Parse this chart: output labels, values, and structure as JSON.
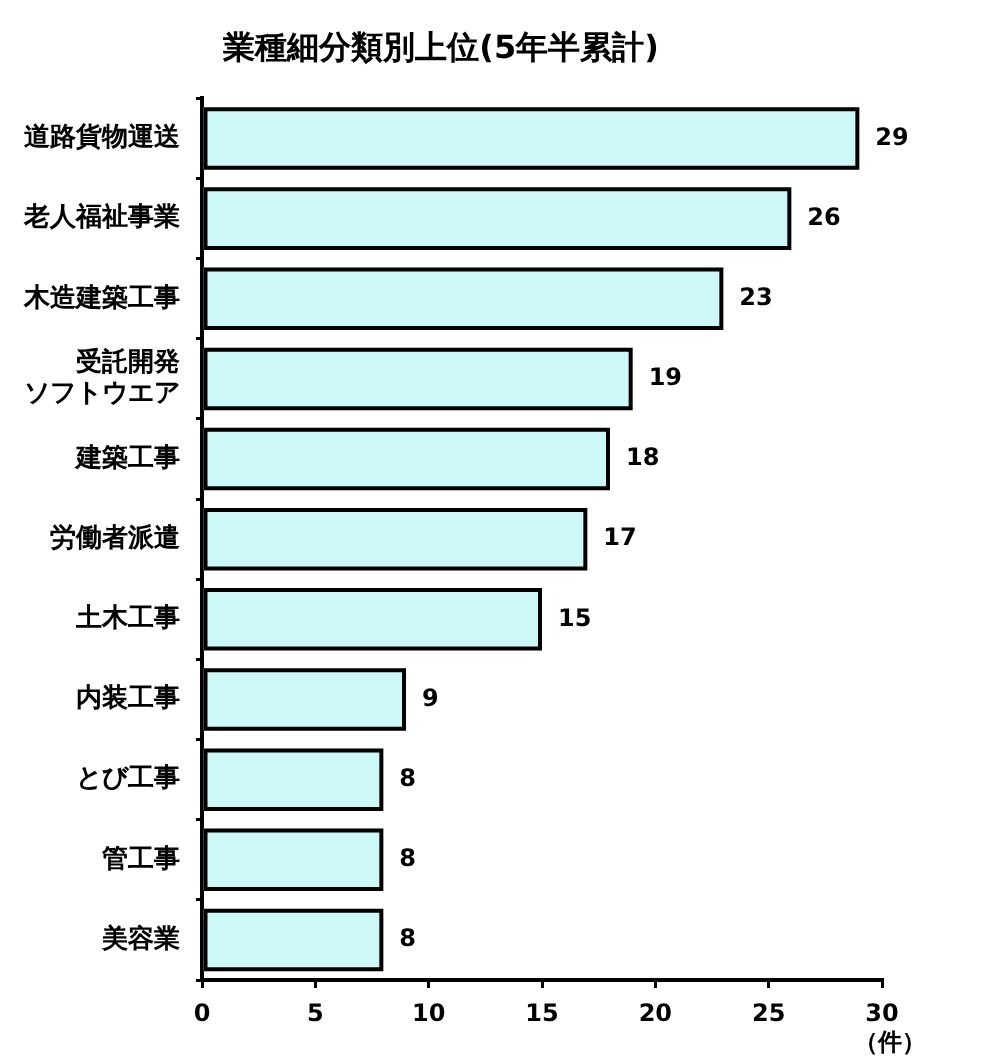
{
  "chart_data": {
    "type": "bar",
    "orientation": "horizontal",
    "title": "業種細分類別上位(5年半累計)",
    "xlabel": "（件）",
    "categories": [
      "道路貨物運送",
      "老人福祉事業",
      "木造建築工事",
      "受託開発ソフトウエア",
      "建築工事",
      "労働者派遣",
      "土木工事",
      "内装工事",
      "とび工事",
      "管工事",
      "美容業"
    ],
    "values": [
      29,
      26,
      23,
      19,
      18,
      17,
      15,
      9,
      8,
      8,
      8
    ],
    "color": "#ccf8f8",
    "xlim": [
      0,
      30
    ],
    "xticks": [
      0,
      5,
      10,
      15,
      20,
      25,
      30
    ],
    "data_labels": true
  }
}
